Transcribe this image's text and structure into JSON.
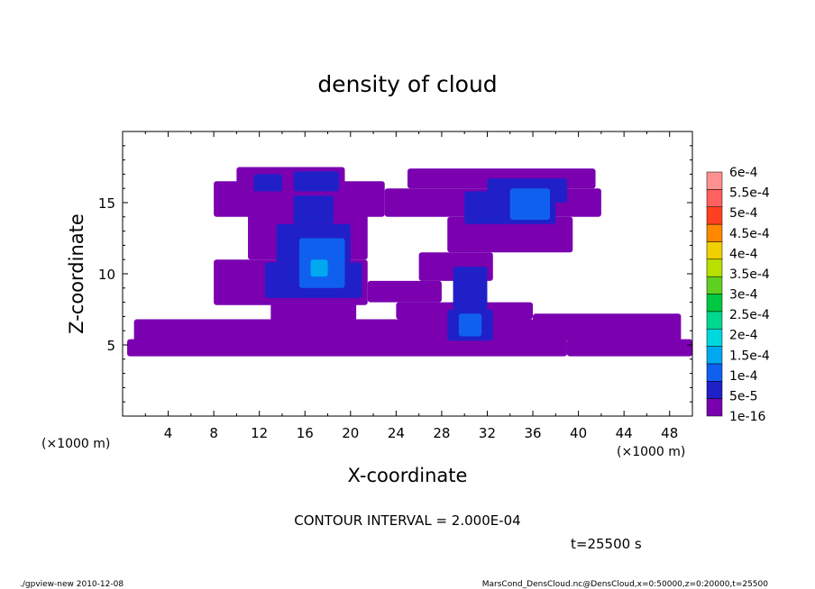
{
  "footer": {
    "program": "./gpview-new  2010-12-08",
    "source": "MarsCond_DensCloud.nc@DensCloud,x=0:50000,z=0:20000,t=25500"
  },
  "annotations": {
    "contour_interval": "CONTOUR INTERVAL = 2.000E-04",
    "time": "t=25500 s",
    "x_unit_left": "(×1000 m)",
    "x_unit_right": "(×1000 m)"
  },
  "colors": {
    "background": "#ffffff",
    "frame": "#000000"
  },
  "chart_data": {
    "type": "heatmap",
    "title": "density of cloud",
    "xlabel": "X-coordinate",
    "ylabel": "Z-coordinate",
    "xlim": [
      0,
      50
    ],
    "ylim": [
      0,
      20
    ],
    "xticks": [
      4,
      8,
      12,
      16,
      20,
      24,
      28,
      32,
      36,
      40,
      44,
      48
    ],
    "yticks": [
      5,
      10,
      15
    ],
    "colorbar": {
      "levels": [
        "1e-16",
        "5e-5",
        "1e-4",
        "1.5e-4",
        "2e-4",
        "2.5e-4",
        "3e-4",
        "3.5e-4",
        "4e-4",
        "4.5e-4",
        "5e-4",
        "5.5e-4",
        "6e-4"
      ],
      "colors": [
        "#7a00b0",
        "#2020c8",
        "#1060f0",
        "#00a8f0",
        "#00d8e0",
        "#00d890",
        "#00c840",
        "#60d020",
        "#b8e000",
        "#f0d000",
        "#ff8800",
        "#ff4020",
        "#ff6060",
        "#ff9090"
      ]
    },
    "regions": [
      {
        "level": 0,
        "x": [
          0.4,
          39.0
        ],
        "z": [
          4.2,
          5.4
        ]
      },
      {
        "level": 0,
        "x": [
          39.0,
          50.0
        ],
        "z": [
          4.2,
          5.4
        ]
      },
      {
        "level": 0,
        "x": [
          1.0,
          12.0
        ],
        "z": [
          5.2,
          6.8
        ]
      },
      {
        "level": 0,
        "x": [
          7.0,
          36.5
        ],
        "z": [
          5.3,
          6.8
        ]
      },
      {
        "level": 0,
        "x": [
          24.0,
          36.0
        ],
        "z": [
          6.8,
          8.0
        ]
      },
      {
        "level": 0,
        "x": [
          36.0,
          49.0
        ],
        "z": [
          5.3,
          7.2
        ]
      },
      {
        "level": 0,
        "x": [
          8.0,
          21.5
        ],
        "z": [
          7.8,
          11.0
        ]
      },
      {
        "level": 0,
        "x": [
          13.0,
          20.5
        ],
        "z": [
          6.2,
          8.5
        ]
      },
      {
        "level": 0,
        "x": [
          11.0,
          21.5
        ],
        "z": [
          11.0,
          14.2
        ]
      },
      {
        "level": 0,
        "x": [
          8.0,
          23.0
        ],
        "z": [
          14.0,
          16.5
        ]
      },
      {
        "level": 0,
        "x": [
          10.0,
          19.5
        ],
        "z": [
          16.0,
          17.5
        ]
      },
      {
        "level": 0,
        "x": [
          21.5,
          28.0
        ],
        "z": [
          8.0,
          9.5
        ]
      },
      {
        "level": 0,
        "x": [
          26.0,
          32.5
        ],
        "z": [
          9.5,
          11.5
        ]
      },
      {
        "level": 0,
        "x": [
          28.5,
          39.5
        ],
        "z": [
          11.5,
          14.0
        ]
      },
      {
        "level": 0,
        "x": [
          23.0,
          42.0
        ],
        "z": [
          14.0,
          16.0
        ]
      },
      {
        "level": 0,
        "x": [
          25.0,
          41.5
        ],
        "z": [
          16.0,
          17.4
        ]
      },
      {
        "level": 1,
        "x": [
          12.5,
          21.0
        ],
        "z": [
          8.3,
          10.8
        ]
      },
      {
        "level": 1,
        "x": [
          13.5,
          20.0
        ],
        "z": [
          10.8,
          13.5
        ]
      },
      {
        "level": 1,
        "x": [
          15.0,
          18.5
        ],
        "z": [
          13.5,
          15.5
        ]
      },
      {
        "level": 1,
        "x": [
          11.5,
          14.0
        ],
        "z": [
          15.8,
          17.0
        ]
      },
      {
        "level": 1,
        "x": [
          15.0,
          19.0
        ],
        "z": [
          15.8,
          17.2
        ]
      },
      {
        "level": 1,
        "x": [
          28.5,
          32.5
        ],
        "z": [
          5.3,
          7.5
        ]
      },
      {
        "level": 1,
        "x": [
          29.0,
          32.0
        ],
        "z": [
          7.5,
          10.5
        ]
      },
      {
        "level": 1,
        "x": [
          30.0,
          38.0
        ],
        "z": [
          13.5,
          15.8
        ]
      },
      {
        "level": 1,
        "x": [
          32.0,
          39.0
        ],
        "z": [
          15.0,
          16.7
        ]
      },
      {
        "level": 2,
        "x": [
          15.5,
          19.5
        ],
        "z": [
          9.0,
          12.5
        ]
      },
      {
        "level": 2,
        "x": [
          29.5,
          31.5
        ],
        "z": [
          5.6,
          7.2
        ]
      },
      {
        "level": 2,
        "x": [
          34.0,
          37.5
        ],
        "z": [
          13.8,
          16.0
        ]
      },
      {
        "level": 3,
        "x": [
          16.5,
          18.0
        ],
        "z": [
          9.8,
          11.0
        ]
      }
    ]
  }
}
